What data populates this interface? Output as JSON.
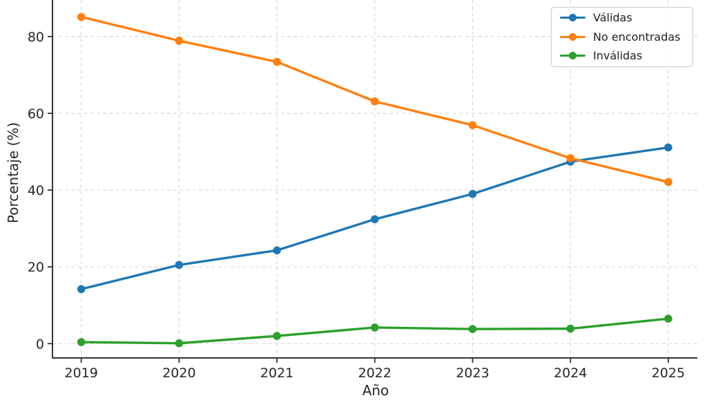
{
  "figure": {
    "background": "#ffffff"
  },
  "axis": {
    "spine_color": "#333333",
    "tick_label_color": "#262626",
    "grid_color": "#d7d7d7"
  },
  "legend": {
    "position": "upper-right",
    "entries": [
      "Válidas",
      "No encontradas",
      "Inválidas"
    ]
  },
  "chart_data": {
    "type": "line",
    "title": "",
    "xlabel": "Año",
    "ylabel": "Porcentaje (%)",
    "x": [
      2019,
      2020,
      2021,
      2022,
      2023,
      2024,
      2025
    ],
    "yticks": [
      0,
      20,
      40,
      60,
      80
    ],
    "ylim": [
      -3.7,
      89.5
    ],
    "grid": true,
    "grid_style": "dashed",
    "legend_position": "upper right",
    "series": [
      {
        "name": "Válidas",
        "color": "#1f77b4",
        "values": [
          14.2,
          20.5,
          24.3,
          32.4,
          39.0,
          47.4,
          51.1
        ]
      },
      {
        "name": "No encontradas",
        "color": "#ff7f0e",
        "values": [
          85.1,
          78.9,
          73.4,
          63.1,
          56.9,
          48.3,
          42.1
        ]
      },
      {
        "name": "Inválidas",
        "color": "#2ca02c",
        "values": [
          0.4,
          0.1,
          2.0,
          4.2,
          3.8,
          3.9,
          6.5
        ]
      }
    ]
  }
}
